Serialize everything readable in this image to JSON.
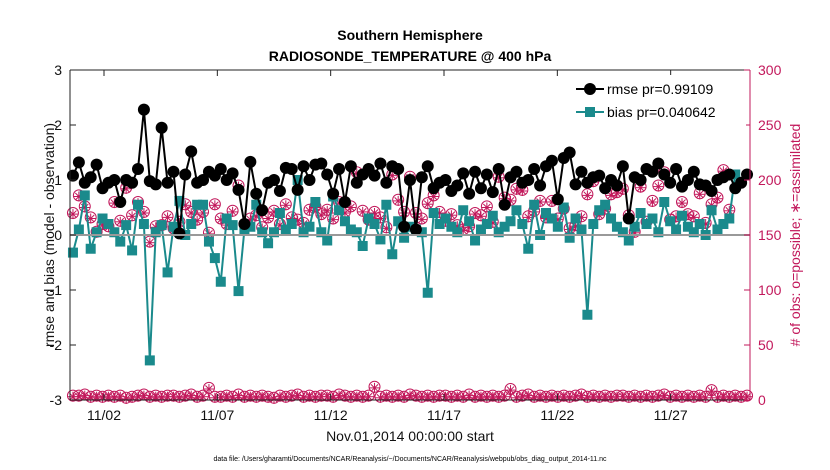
{
  "chart_data": {
    "type": "line",
    "title": "Southern Hemisphere",
    "subtitle": "RADIOSONDE_TEMPERATURE @ 400 hPa",
    "xlabel": "Nov.01,2014 00:00:00 start",
    "ylabel": "rmse and bias (model - observation)",
    "ylabel_right": "# of obs: o=possible; ∗=assimilated",
    "footnote": "data file: /Users/gharamti/Documents/NCAR/Reanalysis/~/Documents/NCAR/Reanalysis/webpub/obs_diag_output_2014-11.nc",
    "xlim": [
      0.5,
      30.5
    ],
    "ylim": [
      -3,
      3
    ],
    "ylim_right": [
      0,
      300
    ],
    "x_ticks": [
      {
        "x": 2,
        "label": "11/02"
      },
      {
        "x": 7,
        "label": "11/07"
      },
      {
        "x": 12,
        "label": "11/12"
      },
      {
        "x": 17,
        "label": "11/17"
      },
      {
        "x": 22,
        "label": "11/22"
      },
      {
        "x": 27,
        "label": "11/27"
      }
    ],
    "y_ticks": [
      "-3",
      "-2",
      "-1",
      "0",
      "1",
      "2",
      "3"
    ],
    "y_ticks_right": [
      "0",
      "50",
      "100",
      "150",
      "200",
      "250",
      "300"
    ],
    "grid": false,
    "legend_position": "top-right",
    "series": [
      {
        "name": "rmse pr=0.99109",
        "color": "#000000",
        "marker": "circle",
        "values": [
          1.08,
          1.32,
          0.95,
          1.05,
          1.28,
          0.85,
          0.95,
          1.0,
          0.6,
          1.0,
          0.95,
          1.2,
          2.28,
          0.98,
          0.92,
          1.95,
          0.95,
          1.15,
          0.03,
          1.1,
          1.52,
          0.95,
          1.0,
          1.15,
          1.08,
          1.2,
          1.0,
          1.12,
          0.82,
          0.2,
          1.33,
          0.75,
          0.45,
          0.95,
          1.0,
          0.8,
          1.22,
          1.2,
          0.82,
          1.25,
          1.0,
          1.28,
          1.3,
          1.1,
          0.75,
          1.2,
          0.6,
          1.25,
          0.95,
          1.1,
          1.2,
          1.08,
          1.3,
          0.95,
          1.25,
          1.2,
          0.15,
          1.0,
          0.1,
          1.05,
          1.25,
          0.85,
          0.95,
          1.0,
          0.8,
          0.9,
          1.12,
          0.75,
          1.15,
          0.85,
          1.1,
          0.78,
          1.2,
          0.55,
          1.05,
          1.15,
          0.95,
          1.0,
          1.2,
          0.9,
          1.25,
          1.35,
          0.65,
          1.4,
          1.5,
          0.92,
          1.15,
          0.95,
          1.05,
          1.08,
          0.85,
          1.0,
          0.9,
          1.25,
          0.3,
          1.05,
          1.0,
          1.2,
          1.15,
          1.3,
          1.1,
          0.95,
          1.2,
          0.88,
          1.0,
          1.15,
          0.92,
          0.9,
          0.8,
          1.0,
          1.05,
          1.1,
          0.85,
          0.95,
          1.1
        ]
      },
      {
        "name": "bias pr=0.040642",
        "color": "#1a8a8c",
        "marker": "square",
        "values": [
          -0.32,
          0.1,
          0.72,
          -0.25,
          0.05,
          0.3,
          0.2,
          0.05,
          -0.12,
          0.18,
          -0.28,
          0.55,
          0.2,
          -2.28,
          0.05,
          0.18,
          -0.68,
          0.15,
          0.62,
          0.0,
          0.2,
          0.55,
          0.55,
          -0.12,
          -0.42,
          -0.85,
          0.3,
          0.18,
          -1.02,
          0.1,
          0.15,
          0.55,
          0.05,
          -0.15,
          0.05,
          0.4,
          0.1,
          0.2,
          1.0,
          0.05,
          0.15,
          0.6,
          0.05,
          -0.1,
          0.7,
          0.45,
          0.25,
          0.1,
          0.05,
          -0.2,
          0.3,
          0.2,
          -0.08,
          0.55,
          -0.35,
          0.25,
          -0.05,
          0.15,
          0.1,
          0.05,
          -1.05,
          0.4,
          0.2,
          0.3,
          0.15,
          0.05,
          0.45,
          0.25,
          -0.1,
          0.1,
          0.2,
          0.35,
          0.05,
          0.15,
          0.25,
          0.45,
          0.2,
          -0.25,
          0.55,
          0.0,
          0.4,
          0.3,
          0.15,
          0.5,
          -0.05,
          0.3,
          0.1,
          -1.45,
          0.2,
          0.45,
          0.55,
          0.3,
          0.15,
          0.05,
          -0.1,
          0.15,
          0.4,
          0.2,
          0.3,
          0.05,
          0.6,
          0.25,
          0.1,
          0.35,
          0.15,
          0.05,
          0.2,
          0.0,
          0.45,
          0.1,
          0.2,
          0.3,
          1.1
        ]
      }
    ],
    "obs_possible": {
      "name": "# of obs possible",
      "color": "#c2185b",
      "marker": "circle",
      "values": [
        170,
        186,
        176,
        166,
        153,
        160,
        158,
        180,
        163,
        193,
        168,
        180,
        171,
        144,
        158,
        159,
        167,
        156,
        162,
        178,
        171,
        164,
        171,
        152,
        178,
        165,
        160,
        172,
        195,
        160,
        165,
        168,
        157,
        166,
        172,
        160,
        178,
        166,
        164,
        161,
        173,
        176,
        169,
        173,
        165,
        180,
        171,
        176,
        207,
        172,
        164,
        171,
        166,
        157,
        205,
        182,
        171,
        203,
        170,
        165,
        179,
        186,
        171,
        163,
        169,
        159,
        155,
        158,
        170,
        168,
        176,
        162,
        203,
        184,
        182,
        192,
        191,
        167,
        172,
        181,
        166,
        181,
        165,
        174,
        156,
        159,
        167,
        187,
        199,
        169,
        174,
        187,
        189,
        192,
        168,
        153,
        194,
        162,
        181,
        195,
        207,
        164,
        167,
        180,
        169,
        167,
        188,
        161,
        178,
        184,
        209,
        173
      ],
      "total_values": [
        4,
        4,
        5,
        3,
        4,
        3,
        4,
        3,
        4,
        2,
        3,
        4,
        5,
        3,
        4,
        3,
        4,
        4,
        3,
        4,
        5,
        3,
        4,
        11,
        3,
        3,
        4,
        3,
        5,
        3,
        4,
        3,
        4,
        3,
        2,
        4,
        3,
        4,
        5,
        3,
        4,
        3,
        4,
        4,
        3,
        5,
        4,
        3,
        4,
        3,
        4,
        12,
        3,
        4,
        3,
        4,
        3,
        5,
        4,
        3,
        4,
        3,
        4,
        4,
        3,
        4,
        3,
        5,
        3,
        4,
        3,
        4,
        3,
        4,
        10,
        3,
        4,
        5,
        3,
        4,
        3,
        4,
        3,
        4,
        3,
        4,
        5,
        3,
        4,
        3,
        4,
        3,
        4,
        4,
        3,
        4,
        3,
        4,
        3,
        4,
        5,
        3,
        4,
        3,
        4,
        3,
        4,
        3,
        9,
        3,
        4,
        3,
        4,
        3,
        4
      ]
    },
    "obs_assimilated": {
      "name": "# of obs assimilated",
      "color": "#c2185b",
      "marker": "asterisk",
      "values": [
        169,
        185,
        175,
        165,
        152,
        159,
        157,
        179,
        162,
        192,
        167,
        179,
        170,
        143,
        157,
        158,
        166,
        155,
        161,
        177,
        170,
        163,
        170,
        151,
        177,
        164,
        159,
        171,
        194,
        159,
        164,
        167,
        156,
        165,
        171,
        159,
        177,
        165,
        163,
        160,
        172,
        175,
        168,
        172,
        164,
        179,
        170,
        175,
        206,
        171,
        163,
        170,
        165,
        156,
        204,
        181,
        170,
        202,
        169,
        164,
        178,
        185,
        170,
        162,
        168,
        158,
        154,
        157,
        169,
        167,
        175,
        161,
        202,
        183,
        181,
        191,
        190,
        166,
        171,
        180,
        165,
        180,
        164,
        173,
        155,
        158,
        166,
        186,
        198,
        168,
        173,
        186,
        188,
        191,
        167,
        152,
        193,
        161,
        180,
        194,
        206,
        163,
        166,
        179,
        168,
        166,
        187,
        160,
        177,
        183,
        208,
        172
      ],
      "total_values": [
        3,
        3,
        4,
        2,
        3,
        2,
        3,
        2,
        3,
        1,
        2,
        3,
        4,
        2,
        3,
        2,
        3,
        3,
        2,
        3,
        4,
        2,
        3,
        10,
        2,
        2,
        3,
        2,
        4,
        2,
        3,
        2,
        3,
        2,
        1,
        3,
        2,
        3,
        4,
        2,
        3,
        2,
        3,
        3,
        2,
        4,
        3,
        2,
        3,
        2,
        3,
        11,
        2,
        3,
        2,
        3,
        2,
        4,
        3,
        2,
        3,
        2,
        3,
        3,
        2,
        3,
        2,
        4,
        2,
        3,
        2,
        3,
        2,
        3,
        9,
        2,
        3,
        4,
        2,
        3,
        2,
        3,
        2,
        3,
        2,
        3,
        4,
        2,
        3,
        2,
        3,
        2,
        3,
        3,
        2,
        3,
        2,
        3,
        2,
        3,
        4,
        2,
        3,
        2,
        3,
        2,
        3,
        2,
        8,
        2,
        3,
        2,
        3,
        2,
        3
      ]
    }
  }
}
